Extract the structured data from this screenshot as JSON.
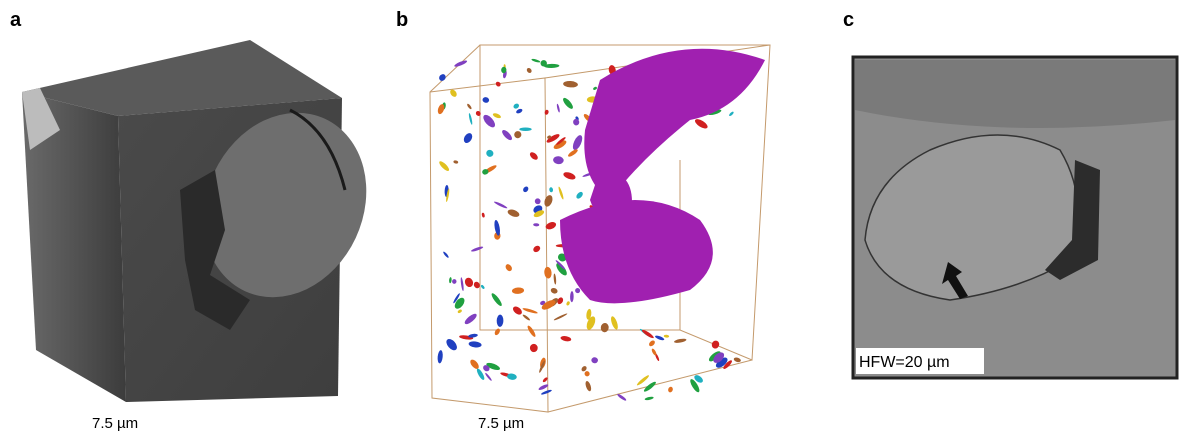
{
  "panels": [
    {
      "label": "a",
      "caption": "7.5 µm"
    },
    {
      "label": "b",
      "caption": "7.5 µm"
    },
    {
      "label": "c",
      "caption": "HFW=20 µm"
    }
  ]
}
